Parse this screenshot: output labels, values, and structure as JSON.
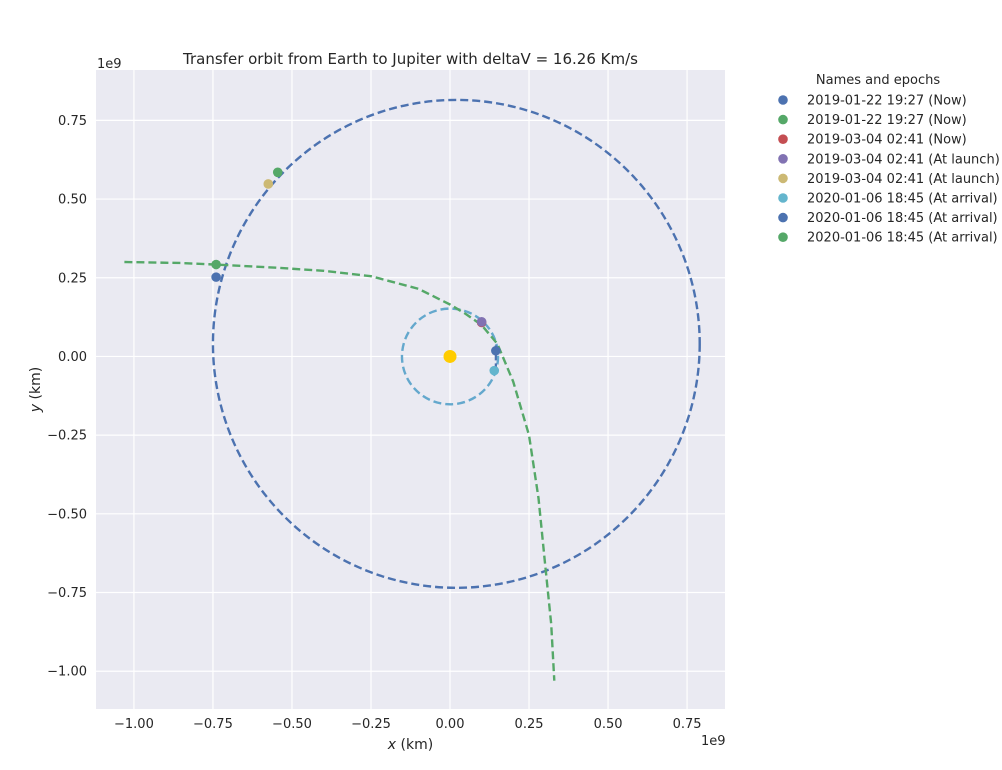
{
  "chart_data": {
    "type": "line",
    "title": "Transfer orbit from Earth to Jupiter with deltaV = 16.26 Km/s",
    "xlabel_var": "x",
    "xlabel_unit": " (km)",
    "ylabel_var": "y",
    "ylabel_unit": " (km)",
    "x_offset_label": "1e9",
    "y_offset_label": "1e9",
    "xlim": [
      -1.12,
      0.87
    ],
    "ylim": [
      -1.12,
      0.91
    ],
    "x_ticks": [
      -1.0,
      -0.75,
      -0.5,
      -0.25,
      0.0,
      0.25,
      0.5,
      0.75
    ],
    "x_tick_labels": [
      "−1.00",
      "−0.75",
      "−0.50",
      "−0.25",
      "0.00",
      "0.25",
      "0.50",
      "0.75"
    ],
    "y_ticks": [
      -1.0,
      -0.75,
      -0.5,
      -0.25,
      0.0,
      0.25,
      0.5,
      0.75
    ],
    "y_tick_labels": [
      "−1.00",
      "−0.75",
      "−0.50",
      "−0.25",
      "0.00",
      "0.25",
      "0.50",
      "0.75"
    ],
    "grid": true,
    "legend_title": "Names and epochs",
    "legend_position": "outside-top-right",
    "sun": {
      "x": 0.0,
      "y": 0.0,
      "color": "#FFCC00"
    },
    "orbits": [
      {
        "kind": "ellipse",
        "cx": 0.02,
        "cy": 0.04,
        "rx": 0.77,
        "ry": 0.775,
        "color": "#4C72B0"
      },
      {
        "kind": "circle",
        "cx": 0.0,
        "cy": 0.0,
        "r": 0.152,
        "color": "#64A8CD"
      }
    ],
    "transfer_path": {
      "color": "#55A868",
      "x": [
        -1.03,
        -0.85,
        -0.7,
        -0.55,
        -0.4,
        -0.25,
        -0.1,
        0.0,
        0.05,
        0.1,
        0.15,
        0.2,
        0.25,
        0.28,
        0.3,
        0.32,
        0.33
      ],
      "y": [
        0.3,
        0.297,
        0.29,
        0.282,
        0.272,
        0.255,
        0.215,
        0.165,
        0.135,
        0.1,
        0.04,
        -0.08,
        -0.25,
        -0.45,
        -0.65,
        -0.85,
        -1.03
      ]
    },
    "small_segment": {
      "color": "#4C72B0",
      "x": [
        0.145,
        0.145
      ],
      "y": [
        0.035,
        -0.05
      ]
    },
    "points": [
      {
        "label": "2019-01-22 19:27 (Now)",
        "color": "#4C72B0",
        "x": 0.145,
        "y": 0.018
      },
      {
        "label": "2019-01-22 19:27 (Now)",
        "color": "#55A868",
        "x": -0.545,
        "y": 0.585
      },
      {
        "label": "2019-03-04 02:41 (Now)",
        "color": "#C44E52",
        "x": 0.1,
        "y": 0.108
      },
      {
        "label": "2019-03-04 02:41 (At launch)",
        "color": "#8172B2",
        "x": 0.1,
        "y": 0.11
      },
      {
        "label": "2019-03-04 02:41 (At launch)",
        "color": "#CCB974",
        "x": -0.575,
        "y": 0.548
      },
      {
        "label": "2020-01-06 18:45 (At arrival)",
        "color": "#64B5CD",
        "x": 0.14,
        "y": -0.045
      },
      {
        "label": "2020-01-06 18:45 (At arrival)",
        "color": "#4C72B0",
        "x": -0.74,
        "y": 0.252
      },
      {
        "label": "2020-01-06 18:45 (At arrival)",
        "color": "#55A868",
        "x": -0.74,
        "y": 0.292
      }
    ]
  }
}
